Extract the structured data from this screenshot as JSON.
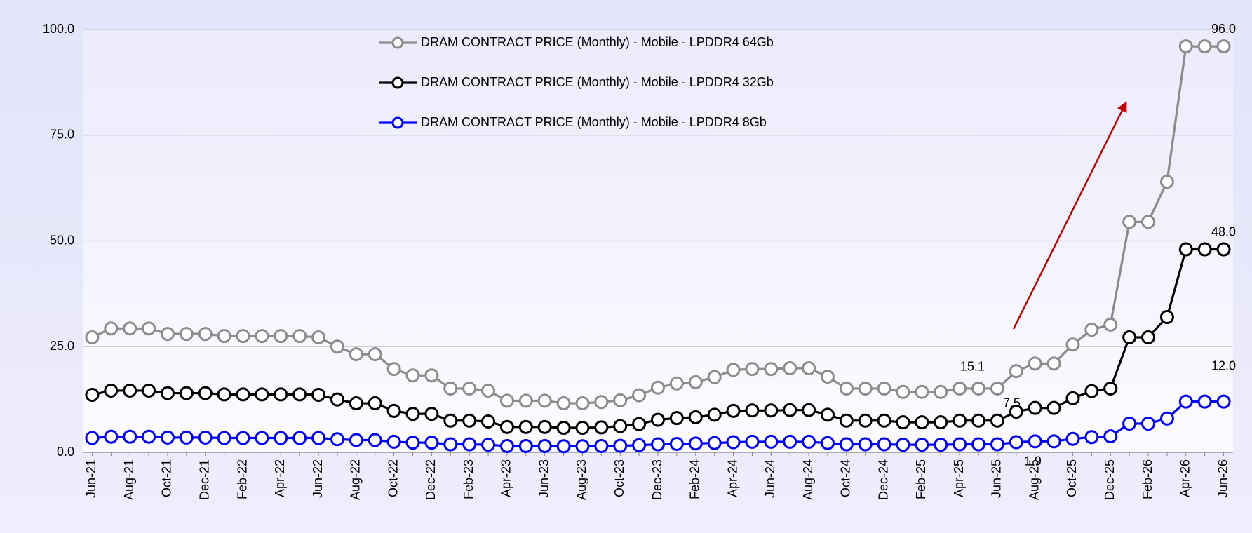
{
  "chart_data": {
    "type": "line",
    "categories": [
      "Jun-21",
      null,
      "Aug-21",
      null,
      "Oct-21",
      null,
      "Dec-21",
      null,
      "Feb-22",
      null,
      "Apr-22",
      null,
      "Jun-22",
      null,
      "Aug-22",
      null,
      "Oct-22",
      null,
      "Dec-22",
      null,
      "Feb-23",
      null,
      "Apr-23",
      null,
      "Jun-23",
      null,
      "Aug-23",
      null,
      "Oct-23",
      null,
      "Dec-23",
      null,
      "Feb-24",
      null,
      "Apr-24",
      null,
      "Jun-24",
      null,
      "Aug-24",
      null,
      "Oct-24",
      null,
      "Dec-24",
      null,
      "Feb-25",
      null,
      "Apr-25",
      null,
      "Jun-25",
      null,
      "Aug-25",
      null,
      "Oct-25",
      null,
      "Dec-25",
      null,
      "Feb-26",
      null,
      "Apr-26",
      null,
      "Jun-26"
    ],
    "series": [
      {
        "name": "DRAM CONTRACT PRICE (Monthly) - Mobile - LPDDR4 64Gb",
        "color": "#8c8c8c",
        "label_color": "#000000",
        "values": [
          27.2,
          29.3,
          29.3,
          29.3,
          28,
          28,
          28,
          27.5,
          27.5,
          27.5,
          27.5,
          27.5,
          27.2,
          25,
          23.2,
          23.2,
          19.7,
          18.2,
          18.2,
          15.1,
          15.1,
          14.6,
          12.2,
          12.2,
          12.2,
          11.6,
          11.6,
          11.9,
          12.3,
          13.5,
          15.3,
          16.3,
          16.6,
          17.8,
          19.5,
          19.7,
          19.7,
          19.9,
          19.9,
          17.9,
          15.1,
          15.1,
          15.1,
          14.3,
          14.3,
          14.3,
          15.1,
          15.1,
          15.1,
          19.2,
          21,
          21,
          25.5,
          29,
          30.2,
          54.5,
          54.5,
          64,
          96,
          96,
          96
        ],
        "value_labels": [
          null,
          null,
          null,
          null,
          null,
          null,
          null,
          null,
          null,
          null,
          null,
          null,
          null,
          null,
          null,
          null,
          null,
          null,
          null,
          null,
          null,
          null,
          null,
          null,
          null,
          null,
          null,
          null,
          null,
          null,
          null,
          null,
          null,
          null,
          null,
          null,
          null,
          null,
          null,
          null,
          null,
          null,
          null,
          null,
          null,
          null,
          null,
          null,
          "15.1",
          null,
          null,
          null,
          null,
          null,
          null,
          null,
          null,
          null,
          null,
          null,
          "96.0"
        ]
      },
      {
        "name": "DRAM CONTRACT PRICE (Monthly) - Mobile - LPDDR4 32Gb",
        "color": "#000000",
        "label_color": "#000000",
        "values": [
          13.6,
          14.6,
          14.6,
          14.6,
          14,
          14,
          14,
          13.7,
          13.7,
          13.7,
          13.7,
          13.7,
          13.6,
          12.5,
          11.6,
          11.6,
          9.8,
          9.1,
          9.1,
          7.5,
          7.5,
          7.3,
          6,
          6,
          6,
          5.8,
          5.8,
          5.9,
          6.2,
          6.7,
          7.7,
          8.1,
          8.3,
          8.9,
          9.8,
          9.9,
          9.9,
          10,
          10,
          8.9,
          7.5,
          7.5,
          7.5,
          7.1,
          7.1,
          7.1,
          7.5,
          7.5,
          7.5,
          9.6,
          10.5,
          10.5,
          12.8,
          14.5,
          15.1,
          27.2,
          27.2,
          32,
          48,
          48,
          48
        ],
        "value_labels": [
          null,
          null,
          null,
          null,
          null,
          null,
          null,
          null,
          null,
          null,
          null,
          null,
          null,
          null,
          null,
          null,
          null,
          null,
          null,
          null,
          null,
          null,
          null,
          null,
          null,
          null,
          null,
          null,
          null,
          null,
          null,
          null,
          null,
          null,
          null,
          null,
          null,
          null,
          null,
          null,
          null,
          null,
          null,
          null,
          null,
          null,
          null,
          null,
          "7.5",
          null,
          null,
          null,
          null,
          null,
          null,
          null,
          null,
          null,
          null,
          null,
          "48.0"
        ]
      },
      {
        "name": "DRAM CONTRACT PRICE (Monthly) - Mobile - LPDDR4 8Gb",
        "color": "#0000ff",
        "label_color": "#0000ff",
        "values": [
          3.4,
          3.7,
          3.7,
          3.7,
          3.5,
          3.5,
          3.5,
          3.4,
          3.4,
          3.4,
          3.4,
          3.4,
          3.4,
          3.1,
          2.9,
          2.9,
          2.5,
          2.3,
          2.3,
          1.9,
          1.9,
          1.8,
          1.5,
          1.5,
          1.5,
          1.45,
          1.45,
          1.5,
          1.55,
          1.7,
          1.9,
          2,
          2.1,
          2.2,
          2.4,
          2.5,
          2.5,
          2.5,
          2.5,
          2.2,
          1.9,
          1.9,
          1.9,
          1.8,
          1.8,
          1.8,
          1.9,
          1.9,
          1.9,
          2.4,
          2.6,
          2.6,
          3.2,
          3.6,
          3.8,
          6.8,
          6.8,
          8,
          12,
          12,
          12
        ],
        "value_labels": [
          null,
          null,
          null,
          null,
          null,
          null,
          null,
          null,
          null,
          null,
          null,
          null,
          null,
          null,
          null,
          null,
          null,
          null,
          null,
          null,
          null,
          null,
          null,
          null,
          null,
          null,
          null,
          null,
          null,
          null,
          null,
          null,
          null,
          null,
          null,
          null,
          null,
          null,
          null,
          null,
          null,
          null,
          null,
          null,
          null,
          null,
          null,
          null,
          "1.9",
          null,
          null,
          null,
          null,
          null,
          null,
          null,
          null,
          null,
          null,
          null,
          "12.0"
        ]
      }
    ],
    "ylim": [
      0,
      100
    ],
    "yticks": [
      {
        "value": 0,
        "label": "0.0"
      },
      {
        "value": 25,
        "label": "25.0"
      },
      {
        "value": 50,
        "label": "50.0"
      },
      {
        "value": 75,
        "label": "75.0"
      },
      {
        "value": 100,
        "label": "100.0"
      }
    ],
    "grid": true,
    "legend": "top"
  }
}
